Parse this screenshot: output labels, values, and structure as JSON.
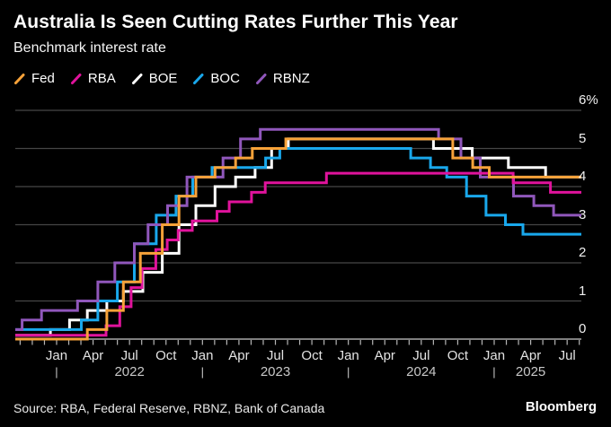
{
  "header": {
    "title": "Australia Is Seen Cutting Rates Further This Year",
    "subtitle": "Benchmark interest rate"
  },
  "legend": [
    {
      "label": "Fed",
      "color": "#F7A239"
    },
    {
      "label": "RBA",
      "color": "#E0139C"
    },
    {
      "label": "BOE",
      "color": "#FFFFFF"
    },
    {
      "label": "BOC",
      "color": "#19A8EC"
    },
    {
      "label": "RBNZ",
      "color": "#9057BB"
    }
  ],
  "chart_data": {
    "type": "line",
    "style": "step-after",
    "title": "Australia Is Seen Cutting Rates Further This Year",
    "subtitle": "Benchmark interest rate",
    "xlabel": "",
    "ylabel": "Benchmark interest rate (%)",
    "ylim": [
      0,
      6
    ],
    "grid": true,
    "legend_position": "top-left",
    "x_domain": [
      "2021-09-19",
      "2025-08-06"
    ],
    "y_ticks": [
      {
        "label": "6%",
        "value": 6
      },
      {
        "label": "5",
        "value": 5
      },
      {
        "label": "4",
        "value": 4
      },
      {
        "label": "3",
        "value": 3
      },
      {
        "label": "2",
        "value": 2
      },
      {
        "label": "1",
        "value": 1
      },
      {
        "label": "0",
        "value": 0
      }
    ],
    "x_month_labels": [
      {
        "text": "Jan",
        "at": "2022-01-01"
      },
      {
        "text": "Apr",
        "at": "2022-04-01"
      },
      {
        "text": "Jul",
        "at": "2022-07-01"
      },
      {
        "text": "Oct",
        "at": "2022-10-01"
      },
      {
        "text": "Jan",
        "at": "2023-01-01"
      },
      {
        "text": "Apr",
        "at": "2023-04-01"
      },
      {
        "text": "Jul",
        "at": "2023-07-01"
      },
      {
        "text": "Oct",
        "at": "2023-10-01"
      },
      {
        "text": "Jan",
        "at": "2024-01-01"
      },
      {
        "text": "Apr",
        "at": "2024-04-01"
      },
      {
        "text": "Jul",
        "at": "2024-07-01"
      },
      {
        "text": "Oct",
        "at": "2024-10-01"
      },
      {
        "text": "Jan",
        "at": "2025-01-01"
      },
      {
        "text": "Apr",
        "at": "2025-04-01"
      },
      {
        "text": "Jul",
        "at": "2025-07-01"
      }
    ],
    "x_year_labels": [
      {
        "text": "2022",
        "at": "2022-07-01"
      },
      {
        "text": "2023",
        "at": "2023-07-01"
      },
      {
        "text": "2024",
        "at": "2024-07-01"
      },
      {
        "text": "2025",
        "at": "2025-04-01"
      }
    ],
    "x_year_separators": [
      "2022-01-01",
      "2023-01-01",
      "2024-01-01",
      "2025-01-01"
    ],
    "draw_order": [
      "BOE",
      "BOC",
      "RBNZ",
      "RBA",
      "Fed"
    ],
    "series": [
      {
        "name": "Fed",
        "color": "#F7A239",
        "points": [
          [
            "2021-09-19",
            0.0
          ],
          [
            "2022-03-17",
            0.25
          ],
          [
            "2022-05-05",
            0.75
          ],
          [
            "2022-06-16",
            1.5
          ],
          [
            "2022-07-28",
            2.25
          ],
          [
            "2022-09-22",
            3.0
          ],
          [
            "2022-11-03",
            3.75
          ],
          [
            "2022-12-15",
            4.25
          ],
          [
            "2023-02-02",
            4.5
          ],
          [
            "2023-03-23",
            4.75
          ],
          [
            "2023-05-04",
            5.0
          ],
          [
            "2023-07-27",
            5.25
          ],
          [
            "2024-09-19",
            4.75
          ],
          [
            "2024-11-08",
            4.5
          ],
          [
            "2024-12-19",
            4.25
          ]
        ]
      },
      {
        "name": "RBA",
        "color": "#E0139C",
        "points": [
          [
            "2021-09-19",
            0.1
          ],
          [
            "2022-05-03",
            0.35
          ],
          [
            "2022-06-07",
            0.85
          ],
          [
            "2022-07-05",
            1.35
          ],
          [
            "2022-08-02",
            1.85
          ],
          [
            "2022-09-06",
            2.35
          ],
          [
            "2022-10-04",
            2.6
          ],
          [
            "2022-11-01",
            2.85
          ],
          [
            "2022-12-06",
            3.1
          ],
          [
            "2023-02-07",
            3.35
          ],
          [
            "2023-03-07",
            3.6
          ],
          [
            "2023-05-02",
            3.85
          ],
          [
            "2023-06-06",
            4.1
          ],
          [
            "2023-11-07",
            4.35
          ],
          [
            "2025-02-18",
            4.1
          ],
          [
            "2025-05-20",
            3.85
          ]
        ]
      },
      {
        "name": "BOE",
        "color": "#FFFFFF",
        "points": [
          [
            "2021-09-19",
            0.1
          ],
          [
            "2021-12-16",
            0.25
          ],
          [
            "2022-02-03",
            0.5
          ],
          [
            "2022-03-17",
            0.75
          ],
          [
            "2022-05-05",
            1.0
          ],
          [
            "2022-06-16",
            1.25
          ],
          [
            "2022-08-04",
            1.75
          ],
          [
            "2022-09-22",
            2.25
          ],
          [
            "2022-11-03",
            3.0
          ],
          [
            "2022-12-15",
            3.5
          ],
          [
            "2023-02-02",
            4.0
          ],
          [
            "2023-03-23",
            4.25
          ],
          [
            "2023-05-11",
            4.5
          ],
          [
            "2023-06-22",
            5.0
          ],
          [
            "2023-08-03",
            5.25
          ],
          [
            "2024-08-01",
            5.0
          ],
          [
            "2024-11-07",
            4.75
          ],
          [
            "2025-02-06",
            4.5
          ],
          [
            "2025-05-08",
            4.25
          ]
        ]
      },
      {
        "name": "BOC",
        "color": "#19A8EC",
        "points": [
          [
            "2021-09-19",
            0.25
          ],
          [
            "2022-03-02",
            0.5
          ],
          [
            "2022-04-13",
            1.0
          ],
          [
            "2022-06-01",
            1.5
          ],
          [
            "2022-07-13",
            2.5
          ],
          [
            "2022-09-07",
            3.25
          ],
          [
            "2022-10-26",
            3.75
          ],
          [
            "2022-12-07",
            4.25
          ],
          [
            "2023-01-25",
            4.5
          ],
          [
            "2023-06-07",
            4.75
          ],
          [
            "2023-07-12",
            5.0
          ],
          [
            "2024-06-05",
            4.75
          ],
          [
            "2024-07-24",
            4.5
          ],
          [
            "2024-09-04",
            4.25
          ],
          [
            "2024-10-23",
            3.75
          ],
          [
            "2024-12-11",
            3.25
          ],
          [
            "2025-01-29",
            3.0
          ],
          [
            "2025-03-12",
            2.75
          ]
        ]
      },
      {
        "name": "RBNZ",
        "color": "#9057BB",
        "points": [
          [
            "2021-09-19",
            0.25
          ],
          [
            "2021-10-06",
            0.5
          ],
          [
            "2021-11-24",
            0.75
          ],
          [
            "2022-02-23",
            1.0
          ],
          [
            "2022-04-13",
            1.5
          ],
          [
            "2022-05-25",
            2.0
          ],
          [
            "2022-07-13",
            2.5
          ],
          [
            "2022-08-17",
            3.0
          ],
          [
            "2022-10-05",
            3.5
          ],
          [
            "2022-11-23",
            4.25
          ],
          [
            "2023-02-22",
            4.75
          ],
          [
            "2023-04-05",
            5.25
          ],
          [
            "2023-05-24",
            5.5
          ],
          [
            "2024-08-14",
            5.25
          ],
          [
            "2024-10-09",
            4.75
          ],
          [
            "2024-11-27",
            4.25
          ],
          [
            "2025-02-19",
            3.75
          ],
          [
            "2025-04-09",
            3.5
          ],
          [
            "2025-05-28",
            3.25
          ]
        ]
      }
    ],
    "colors": {
      "background": "#000000",
      "gridline": "#464646",
      "axis_line": "#A9A9A9",
      "tick": "#B5B5B5"
    }
  },
  "source": "Source: RBA, Federal Reserve, RBNZ, Bank of Canada",
  "brand": "Bloomberg"
}
